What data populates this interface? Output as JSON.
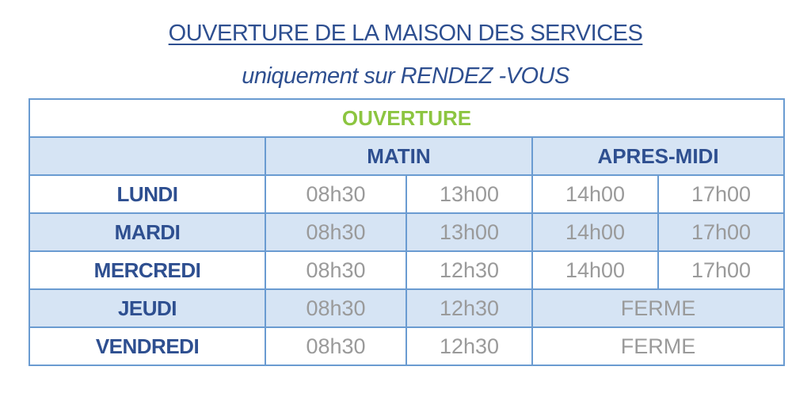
{
  "title": "OUVERTURE DE LA MAISON DES SERVICES",
  "subtitle": "uniquement sur RENDEZ -VOUS",
  "table": {
    "caption": "OUVERTURE",
    "groups": [
      "MATIN",
      "APRES-MIDI"
    ],
    "rows": [
      {
        "day": "LUNDI",
        "times": [
          "08h30",
          "13h00",
          "14h00",
          "17h00"
        ]
      },
      {
        "day": "MARDI",
        "times": [
          "08h30",
          "13h00",
          "14h00",
          "17h00"
        ]
      },
      {
        "day": "MERCREDI",
        "times": [
          "08h30",
          "12h30",
          "14h00",
          "17h00"
        ]
      },
      {
        "day": "JEUDI",
        "times": [
          "08h30",
          "12h30"
        ],
        "afternoon": "FERME"
      },
      {
        "day": "VENDREDI",
        "times": [
          "08h30",
          "12h30"
        ],
        "afternoon": "FERME"
      }
    ]
  },
  "colors": {
    "text_blue": "#2e4f90",
    "border": "#6a9bd1",
    "fill": "#d6e4f4",
    "green": "#8cc540",
    "gray": "#9a9a9a"
  }
}
